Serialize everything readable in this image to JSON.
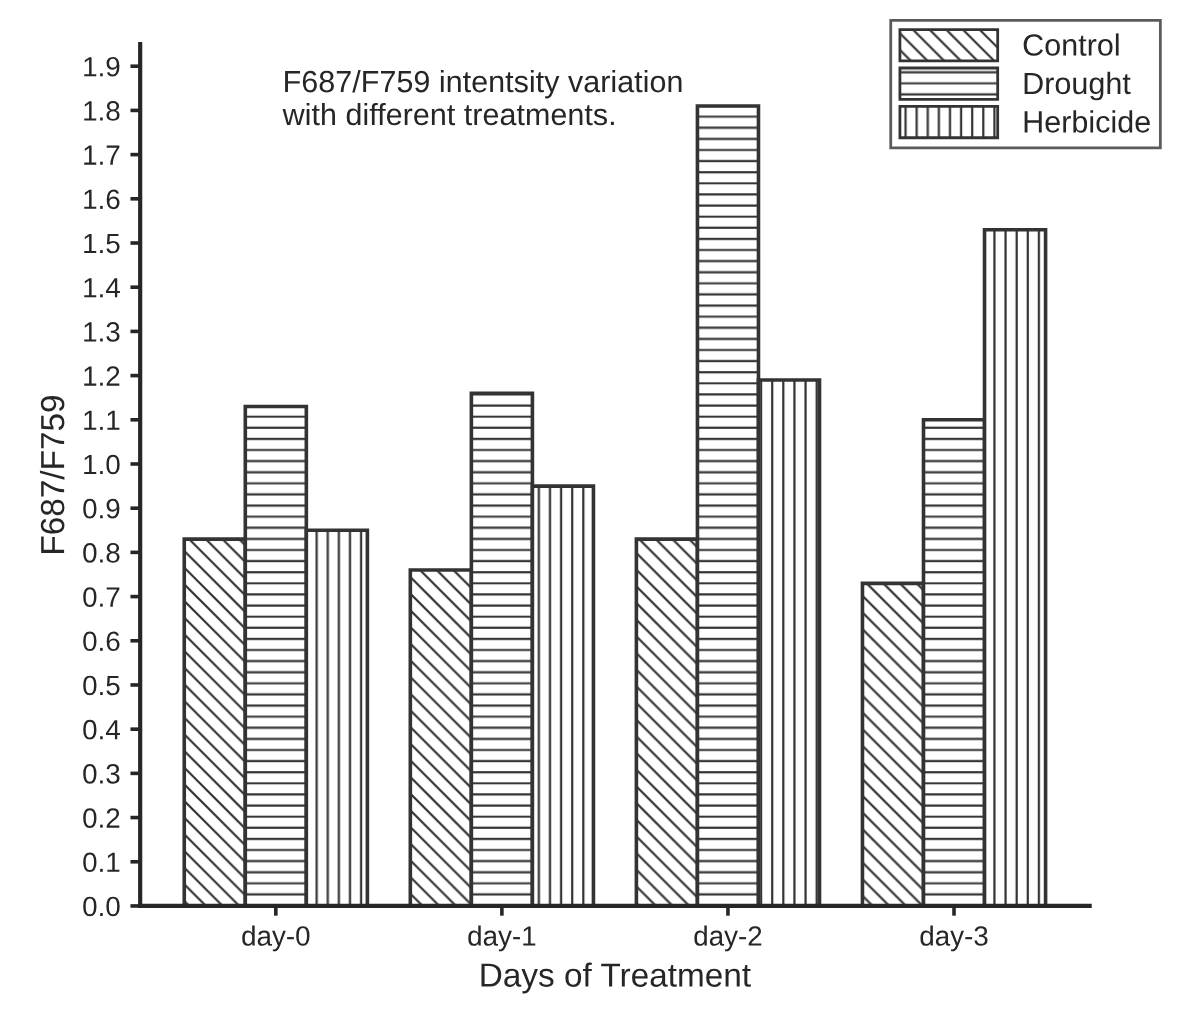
{
  "chart_data": {
    "type": "bar",
    "title": "F687/F759 intentsity variation\nwith different treatments.",
    "xlabel": "Days of Treatment",
    "ylabel": "F687/F759",
    "categories": [
      "day-0",
      "day-1",
      "day-2",
      "day-3"
    ],
    "series": [
      {
        "name": "Control",
        "color": "#333333",
        "values": [
          0.83,
          0.76,
          0.83,
          0.73
        ]
      },
      {
        "name": "Drought",
        "color": "#333333",
        "values": [
          1.13,
          1.16,
          1.81,
          1.1
        ]
      },
      {
        "name": "Herbicide",
        "color": "#333333",
        "values": [
          0.85,
          0.95,
          1.19,
          1.53
        ]
      }
    ],
    "ylim": [
      0,
      1.95
    ],
    "yticks": [
      {
        "value": 0,
        "label": "0.0"
      },
      0.1,
      0.2,
      0.3,
      0.4,
      0.5,
      0.6,
      0.7,
      0.8,
      0.9,
      {
        "value": 1,
        "label": "1.0"
      },
      1.1,
      1.2,
      1.3,
      1.4,
      1.5,
      1.6,
      1.7,
      1.8,
      1.9
    ],
    "grid": false,
    "legend": "top right"
  }
}
